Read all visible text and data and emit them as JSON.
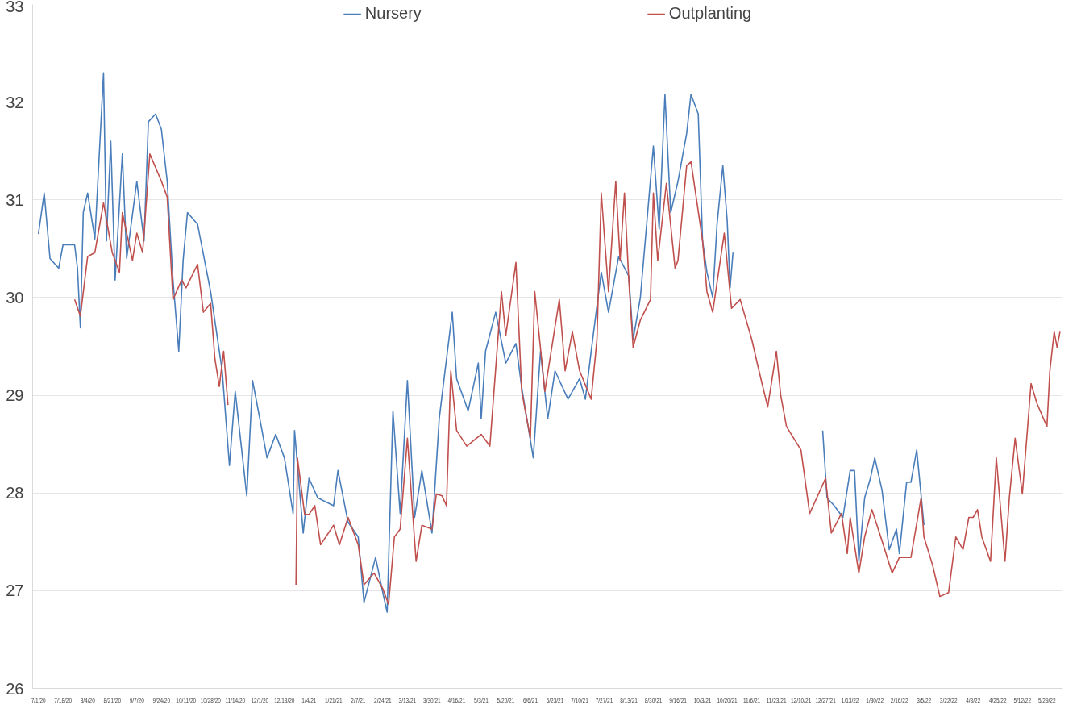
{
  "chart_data": {
    "type": "line",
    "xlim": [
      "2020-06-27",
      "2022-06-09"
    ],
    "ylim": [
      26,
      33
    ],
    "yticks": [
      26,
      27,
      28,
      29,
      30,
      31,
      32,
      33
    ],
    "xticks": [
      {
        "value": "2020-07-01",
        "label": "7/1/20"
      },
      {
        "value": "2020-07-18",
        "label": "7/18/20"
      },
      {
        "value": "2020-08-04",
        "label": "8/4/20"
      },
      {
        "value": "2020-08-21",
        "label": "8/21/20"
      },
      {
        "value": "2020-09-07",
        "label": "9/7/20"
      },
      {
        "value": "2020-09-24",
        "label": "9/24/20"
      },
      {
        "value": "2020-10-11",
        "label": "10/11/20"
      },
      {
        "value": "2020-10-28",
        "label": "10/28/20"
      },
      {
        "value": "2020-11-14",
        "label": "11/14/20"
      },
      {
        "value": "2020-12-01",
        "label": "12/1/20"
      },
      {
        "value": "2020-12-18",
        "label": "12/18/20"
      },
      {
        "value": "2021-01-04",
        "label": "1/4/21"
      },
      {
        "value": "2021-01-21",
        "label": "1/21/21"
      },
      {
        "value": "2021-02-07",
        "label": "2/7/21"
      },
      {
        "value": "2021-02-24",
        "label": "2/24/21"
      },
      {
        "value": "2021-03-13",
        "label": "3/13/21"
      },
      {
        "value": "2021-03-30",
        "label": "3/30/21"
      },
      {
        "value": "2021-04-16",
        "label": "4/16/21"
      },
      {
        "value": "2021-05-03",
        "label": "5/3/21"
      },
      {
        "value": "2021-05-20",
        "label": "5/20/21"
      },
      {
        "value": "2021-06-06",
        "label": "6/6/21"
      },
      {
        "value": "2021-06-23",
        "label": "6/23/21"
      },
      {
        "value": "2021-07-10",
        "label": "7/10/21"
      },
      {
        "value": "2021-07-27",
        "label": "7/27/21"
      },
      {
        "value": "2021-08-13",
        "label": "8/13/21"
      },
      {
        "value": "2021-08-30",
        "label": "8/30/21"
      },
      {
        "value": "2021-09-16",
        "label": "9/16/21"
      },
      {
        "value": "2021-10-03",
        "label": "10/3/21"
      },
      {
        "value": "2021-10-20",
        "label": "10/20/21"
      },
      {
        "value": "2021-11-06",
        "label": "11/6/21"
      },
      {
        "value": "2021-11-23",
        "label": "11/23/21"
      },
      {
        "value": "2021-12-10",
        "label": "12/10/21"
      },
      {
        "value": "2021-12-27",
        "label": "12/27/21"
      },
      {
        "value": "2022-01-13",
        "label": "1/13/22"
      },
      {
        "value": "2022-01-30",
        "label": "1/30/22"
      },
      {
        "value": "2022-02-16",
        "label": "2/16/22"
      },
      {
        "value": "2022-03-05",
        "label": "3/5/22"
      },
      {
        "value": "2022-03-22",
        "label": "3/22/22"
      },
      {
        "value": "2022-04-08",
        "label": "4/8/22"
      },
      {
        "value": "2022-04-25",
        "label": "4/25/22"
      },
      {
        "value": "2022-05-12",
        "label": "5/12/22"
      },
      {
        "value": "2022-05-29",
        "label": "5/29/22"
      }
    ],
    "grid": "y",
    "legend": "top",
    "marker": "none",
    "line_style": "solid",
    "series": [
      {
        "name": "Nursery",
        "color": "#4a7ebb",
        "x": [
          "2020-07-01",
          "2020-07-05",
          "2020-07-09",
          "2020-07-15",
          "2020-07-18",
          "2020-07-26",
          "2020-07-28",
          "2020-07-30",
          "2020-08-01",
          "2020-08-04",
          "2020-08-09",
          "2020-08-15",
          "2020-08-17",
          "2020-08-20",
          "2020-08-23",
          "2020-08-28",
          "2020-08-31",
          "2020-09-07",
          "2020-09-12",
          "2020-09-15",
          "2020-09-20",
          "2020-09-24",
          "2020-09-28",
          "2020-10-02",
          "2020-10-06",
          "2020-10-09",
          "2020-10-12",
          "2020-10-19",
          "2020-10-28",
          "2020-11-05",
          "2020-11-10",
          "2020-11-14",
          "2020-11-22",
          "2020-11-26",
          "2020-12-01",
          "2020-12-06",
          "2020-12-12",
          "2020-12-18",
          "2020-12-24",
          "2020-12-25",
          "2020-12-31",
          "2021-01-04",
          "2021-01-10",
          "2021-01-21",
          "2021-01-24",
          "2021-01-31",
          "2021-02-07",
          "2021-02-11",
          "2021-02-19",
          "2021-02-24",
          "2021-02-27",
          "2021-03-03",
          "2021-03-08",
          "2021-03-13",
          "2021-03-18",
          "2021-03-23",
          "2021-03-30",
          "2021-04-04",
          "2021-04-08",
          "2021-04-13",
          "2021-04-16",
          "2021-04-24",
          "2021-05-01",
          "2021-05-03",
          "2021-05-06",
          "2021-05-13",
          "2021-05-20",
          "2021-05-27",
          "2021-05-31",
          "2021-06-08",
          "2021-06-13",
          "2021-06-18",
          "2021-06-23",
          "2021-07-02",
          "2021-07-10",
          "2021-07-14",
          "2021-07-18",
          "2021-07-25",
          "2021-07-30",
          "2021-08-06",
          "2021-08-13",
          "2021-08-16",
          "2021-08-21",
          "2021-08-30",
          "2021-09-03",
          "2021-09-07",
          "2021-09-11",
          "2021-09-16",
          "2021-09-22",
          "2021-09-25",
          "2021-09-30",
          "2021-10-03",
          "2021-10-06",
          "2021-10-10",
          "2021-10-13",
          "2021-10-17",
          "2021-10-20",
          "2021-10-22",
          "2021-10-24",
          "2021-11-20",
          "2021-12-25",
          "2021-12-28",
          "2022-01-02",
          "2022-01-08",
          "2022-01-13",
          "2022-01-16",
          "2022-01-19",
          "2022-01-23",
          "2022-01-27",
          "2022-01-30",
          "2022-02-04",
          "2022-02-09",
          "2022-02-14",
          "2022-02-16",
          "2022-02-21",
          "2022-02-24",
          "2022-02-28",
          "2022-03-05"
        ],
        "values": [
          30.65,
          31.07,
          30.4,
          30.3,
          30.54,
          30.54,
          30.3,
          29.69,
          30.87,
          31.07,
          30.6,
          32.3,
          30.58,
          31.6,
          30.18,
          31.47,
          30.4,
          31.19,
          30.58,
          31.8,
          31.88,
          31.72,
          31.19,
          30.18,
          29.45,
          30.38,
          30.87,
          30.75,
          30.06,
          29.25,
          28.28,
          29.04,
          27.97,
          29.15,
          28.76,
          28.36,
          28.6,
          28.36,
          27.79,
          28.64,
          27.59,
          28.15,
          27.95,
          27.87,
          28.23,
          27.7,
          27.55,
          26.88,
          27.34,
          26.98,
          26.78,
          28.84,
          27.79,
          29.15,
          27.75,
          28.23,
          27.59,
          28.76,
          29.25,
          29.85,
          29.17,
          28.84,
          29.33,
          28.76,
          29.45,
          29.85,
          29.33,
          29.53,
          29.08,
          28.36,
          29.45,
          28.76,
          29.25,
          28.96,
          29.17,
          28.96,
          29.45,
          30.26,
          29.85,
          30.42,
          30.22,
          29.57,
          30.0,
          31.55,
          30.7,
          32.08,
          30.87,
          31.19,
          31.68,
          32.08,
          31.88,
          30.58,
          30.26,
          30.0,
          30.75,
          31.35,
          30.79,
          30.1,
          30.46,
          null,
          28.64,
          27.95,
          27.87,
          27.75,
          28.23,
          28.23,
          27.3,
          27.95,
          28.15,
          28.36,
          28.03,
          27.42,
          27.63,
          27.38,
          28.11,
          28.11,
          28.44,
          27.67
        ]
      },
      {
        "name": "Outplanting",
        "color": "#c0504d",
        "x": [
          "2020-07-26",
          "2020-07-30",
          "2020-08-04",
          "2020-08-09",
          "2020-08-15",
          "2020-08-21",
          "2020-08-26",
          "2020-08-28",
          "2020-09-04",
          "2020-09-07",
          "2020-09-11",
          "2020-09-16",
          "2020-09-24",
          "2020-09-28",
          "2020-10-02",
          "2020-10-08",
          "2020-10-11",
          "2020-10-19",
          "2020-10-23",
          "2020-10-28",
          "2020-10-31",
          "2020-11-03",
          "2020-11-06",
          "2020-11-09",
          "2020-12-01",
          "2020-12-26",
          "2020-12-27",
          "2021-01-01",
          "2021-01-04",
          "2021-01-08",
          "2021-01-12",
          "2021-01-21",
          "2021-01-25",
          "2021-01-31",
          "2021-02-07",
          "2021-02-11",
          "2021-02-18",
          "2021-02-24",
          "2021-02-28",
          "2021-03-04",
          "2021-03-08",
          "2021-03-13",
          "2021-03-19",
          "2021-03-23",
          "2021-03-30",
          "2021-04-02",
          "2021-04-06",
          "2021-04-09",
          "2021-04-12",
          "2021-04-16",
          "2021-04-23",
          "2021-05-03",
          "2021-05-09",
          "2021-05-17",
          "2021-05-20",
          "2021-05-27",
          "2021-05-31",
          "2021-06-06",
          "2021-06-09",
          "2021-06-16",
          "2021-06-26",
          "2021-06-30",
          "2021-07-05",
          "2021-07-10",
          "2021-07-18",
          "2021-07-22",
          "2021-07-25",
          "2021-07-27",
          "2021-07-30",
          "2021-08-04",
          "2021-08-07",
          "2021-08-10",
          "2021-08-13",
          "2021-08-16",
          "2021-08-21",
          "2021-08-28",
          "2021-08-30",
          "2021-09-02",
          "2021-09-08",
          "2021-09-14",
          "2021-09-16",
          "2021-09-22",
          "2021-09-25",
          "2021-10-03",
          "2021-10-06",
          "2021-10-10",
          "2021-10-18",
          "2021-10-23",
          "2021-10-29",
          "2021-11-06",
          "2021-11-11",
          "2021-11-17",
          "2021-11-23",
          "2021-11-26",
          "2021-11-30",
          "2021-12-10",
          "2021-12-16",
          "2021-12-27",
          "2021-12-31",
          "2022-01-07",
          "2022-01-11",
          "2022-01-13",
          "2022-01-19",
          "2022-01-23",
          "2022-01-28",
          "2022-02-04",
          "2022-02-11",
          "2022-02-16",
          "2022-02-24",
          "2022-03-03",
          "2022-03-05",
          "2022-03-11",
          "2022-03-16",
          "2022-03-22",
          "2022-03-27",
          "2022-04-01",
          "2022-04-05",
          "2022-04-08",
          "2022-04-11",
          "2022-04-14",
          "2022-04-20",
          "2022-04-24",
          "2022-04-30",
          "2022-05-03",
          "2022-05-07",
          "2022-05-12",
          "2022-05-18",
          "2022-05-22",
          "2022-05-29",
          "2022-05-31",
          "2022-06-03",
          "2022-06-05",
          "2022-06-07"
        ],
        "values": [
          29.98,
          29.81,
          30.42,
          30.46,
          30.97,
          30.46,
          30.26,
          30.87,
          30.38,
          30.66,
          30.46,
          31.47,
          31.19,
          31.03,
          29.98,
          30.18,
          30.1,
          30.34,
          29.85,
          29.94,
          29.37,
          29.09,
          29.45,
          28.9,
          null,
          27.06,
          28.36,
          27.78,
          27.78,
          27.87,
          27.47,
          27.67,
          27.47,
          27.75,
          27.47,
          27.06,
          27.18,
          27.02,
          26.86,
          27.55,
          27.63,
          28.56,
          27.3,
          27.67,
          27.63,
          27.99,
          27.97,
          27.87,
          29.25,
          28.64,
          28.48,
          28.6,
          28.48,
          30.06,
          29.61,
          30.36,
          29.04,
          28.56,
          30.06,
          29.04,
          29.98,
          29.25,
          29.65,
          29.25,
          28.96,
          29.57,
          31.07,
          30.66,
          30.06,
          31.19,
          30.38,
          31.07,
          30.18,
          29.49,
          29.77,
          29.98,
          31.07,
          30.38,
          31.17,
          30.3,
          30.38,
          31.35,
          31.39,
          30.58,
          30.06,
          29.85,
          30.66,
          29.89,
          29.98,
          29.57,
          29.25,
          28.88,
          29.45,
          29.0,
          28.68,
          28.44,
          27.79,
          28.15,
          27.59,
          27.79,
          27.38,
          27.75,
          27.18,
          27.55,
          27.83,
          27.51,
          27.18,
          27.34,
          27.34,
          27.95,
          27.55,
          27.26,
          26.94,
          26.98,
          27.55,
          27.42,
          27.75,
          27.75,
          27.83,
          27.55,
          27.3,
          28.36,
          27.3,
          27.95,
          28.56,
          27.99,
          29.12,
          28.92,
          28.68,
          29.25,
          29.65,
          29.49,
          29.65
        ]
      }
    ]
  }
}
